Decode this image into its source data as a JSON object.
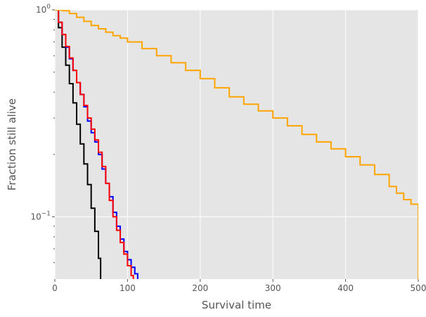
{
  "chart_data": {
    "type": "line",
    "title": "",
    "xlabel": "Survival time",
    "ylabel": "Fraction still alive",
    "xlim": [
      0,
      500
    ],
    "ylim": [
      0.05,
      1.0
    ],
    "yscale": "log",
    "grid": true,
    "x_ticks": [
      {
        "value": 0,
        "label": "0"
      },
      {
        "value": 100,
        "label": "100"
      },
      {
        "value": 200,
        "label": "200"
      },
      {
        "value": 300,
        "label": "300"
      },
      {
        "value": 400,
        "label": "400"
      },
      {
        "value": 500,
        "label": "500"
      }
    ],
    "y_ticks": [
      {
        "value": 1.0,
        "base": "10",
        "exponent": "0"
      },
      {
        "value": 0.1,
        "base": "10",
        "exponent": "−1"
      }
    ],
    "y_minor_ticks": [
      0.06,
      0.07,
      0.08,
      0.09,
      0.2,
      0.3,
      0.4,
      0.5,
      0.6,
      0.7,
      0.8,
      0.9
    ],
    "series": [
      {
        "color": "#000000",
        "x": [
          0,
          5,
          10,
          15,
          20,
          25,
          30,
          35,
          40,
          45,
          50,
          55,
          60,
          63
        ],
        "y": [
          1.0,
          0.82,
          0.66,
          0.54,
          0.44,
          0.355,
          0.28,
          0.225,
          0.18,
          0.143,
          0.11,
          0.085,
          0.063,
          0.05
        ]
      },
      {
        "color": "#0000ff",
        "x": [
          0,
          5,
          10,
          15,
          20,
          25,
          30,
          35,
          40,
          45,
          50,
          55,
          60,
          65,
          70,
          75,
          80,
          85,
          90,
          95,
          100,
          105,
          110,
          114
        ],
        "y": [
          1.0,
          0.87,
          0.76,
          0.66,
          0.58,
          0.51,
          0.445,
          0.39,
          0.34,
          0.29,
          0.255,
          0.23,
          0.2,
          0.17,
          0.145,
          0.125,
          0.105,
          0.09,
          0.078,
          0.068,
          0.062,
          0.057,
          0.053,
          0.05
        ]
      },
      {
        "color": "#ff0000",
        "x": [
          0,
          5,
          10,
          15,
          20,
          25,
          30,
          35,
          40,
          45,
          50,
          55,
          60,
          65,
          70,
          75,
          80,
          85,
          90,
          95,
          100,
          105,
          108
        ],
        "y": [
          1.0,
          0.87,
          0.76,
          0.665,
          0.585,
          0.51,
          0.445,
          0.39,
          0.345,
          0.3,
          0.265,
          0.235,
          0.205,
          0.175,
          0.145,
          0.12,
          0.1,
          0.086,
          0.075,
          0.066,
          0.058,
          0.052,
          0.05
        ]
      },
      {
        "color": "#ffa500",
        "x": [
          0,
          10,
          20,
          30,
          40,
          50,
          60,
          70,
          80,
          90,
          100,
          120,
          140,
          160,
          180,
          200,
          220,
          240,
          260,
          280,
          300,
          320,
          340,
          360,
          380,
          400,
          420,
          440,
          460,
          470,
          480,
          490,
          500,
          500
        ],
        "y": [
          1.0,
          0.99,
          0.96,
          0.92,
          0.88,
          0.84,
          0.81,
          0.78,
          0.75,
          0.73,
          0.7,
          0.65,
          0.6,
          0.555,
          0.51,
          0.465,
          0.42,
          0.38,
          0.35,
          0.325,
          0.3,
          0.275,
          0.25,
          0.23,
          0.213,
          0.195,
          0.178,
          0.16,
          0.14,
          0.13,
          0.121,
          0.115,
          0.113,
          0.05
        ]
      }
    ]
  }
}
